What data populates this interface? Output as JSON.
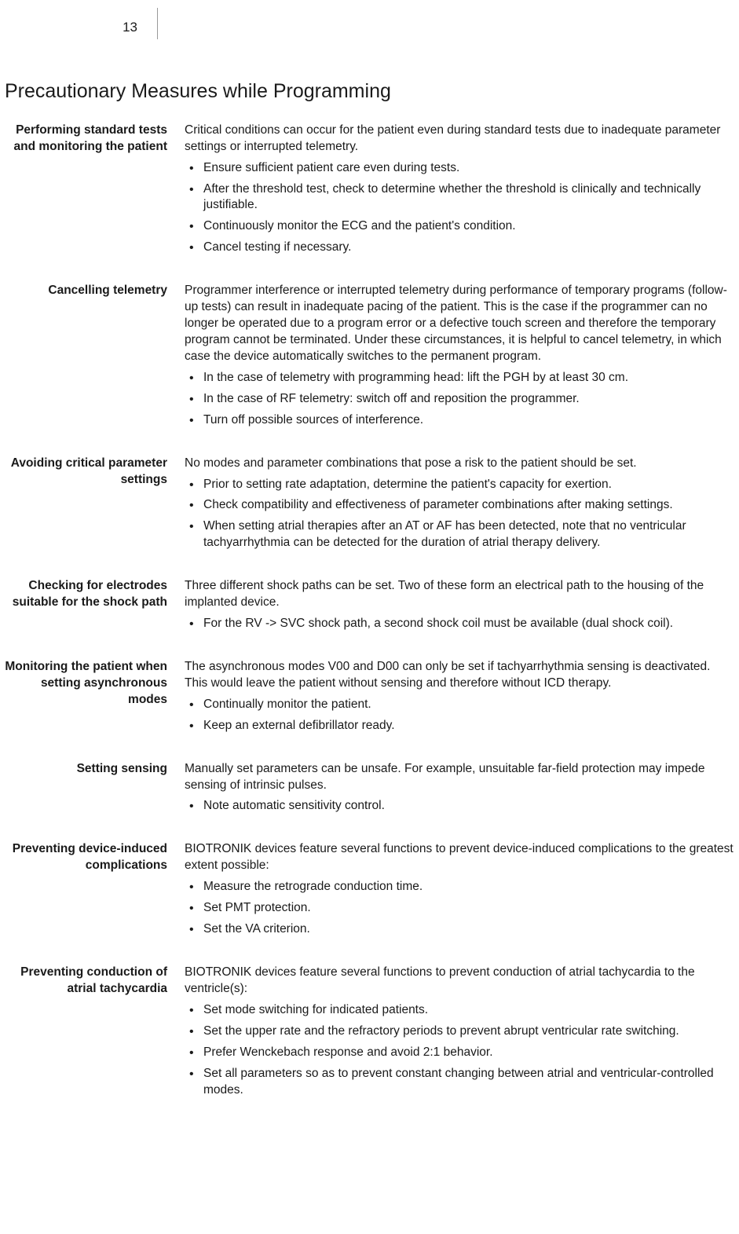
{
  "page_number": "13",
  "section_title": "Precautionary Measures while Programming",
  "items": [
    {
      "label": "Performing standard tests and monitoring the patient",
      "intro": "Critical conditions can occur for the patient even during standard tests due to inadequate parameter settings or interrupted telemetry.",
      "bullets": [
        "Ensure sufficient patient care even during tests.",
        "After the threshold test, check to determine whether the threshold is clinically and technically justifiable.",
        "Continuously monitor the ECG and the patient's condition.",
        "Cancel testing if necessary."
      ]
    },
    {
      "label": "Cancelling telemetry",
      "intro": "Programmer interference or interrupted telemetry during performance of temporary programs (follow-up tests) can result in inadequate pacing of the patient. This is the case if the programmer can no longer be operated due to a program error or a defective touch screen and therefore the temporary program cannot be terminated. Under these circumstances, it is helpful to cancel telemetry, in which case the device automatically switches to the permanent program.",
      "bullets": [
        "In the case of telemetry with programming head: lift the PGH by at least 30 cm.",
        "In the case of RF telemetry: switch off and reposition the programmer.",
        "Turn off possible sources of interference."
      ]
    },
    {
      "label": "Avoiding critical parameter settings",
      "intro": "No modes and parameter combinations that pose a risk to the patient should be set.",
      "bullets": [
        "Prior to setting rate adaptation, determine the patient's capacity for exertion.",
        "Check compatibility and effectiveness of parameter combinations after making settings.",
        "When setting atrial therapies after an AT or AF has been detected, note that no ventricular tachyarrhythmia can be detected for the duration of atrial therapy delivery."
      ]
    },
    {
      "label": "Checking for electrodes suitable for the shock path",
      "intro": "Three different shock paths can be set. Two of these form an electrical path to the housing of the implanted device.",
      "bullets": [
        "For the RV -> SVC shock path, a second shock coil must be available (dual shock coil)."
      ]
    },
    {
      "label": "Monitoring the patient when setting asynchronous modes",
      "intro": "The asynchronous modes V00 and D00 can only be set if tachyarrhythmia sensing is deactivated. This would leave the patient without sensing and therefore without ICD therapy.",
      "bullets": [
        "Continually monitor the patient.",
        "Keep an external defibrillator ready."
      ]
    },
    {
      "label": "Setting sensing",
      "intro": "Manually set parameters can be unsafe. For example, unsuitable far-field protection may impede sensing of intrinsic pulses.",
      "bullets": [
        "Note automatic sensitivity control."
      ]
    },
    {
      "label": "Preventing device-induced complications",
      "intro": "BIOTRONIK devices feature several functions to prevent device-induced complications to the greatest extent possible:",
      "bullets": [
        "Measure the retrograde conduction time.",
        "Set PMT protection.",
        "Set the VA criterion."
      ]
    },
    {
      "label": "Preventing conduction of atrial tachycardia",
      "intro": "BIOTRONIK devices feature several functions to prevent conduction of atrial tachycardia to the ventricle(s):",
      "bullets": [
        "Set mode switching for indicated patients.",
        "Set the upper rate and the refractory periods to prevent abrupt ventricular rate switching.",
        "Prefer Wenckebach response and avoid 2:1 behavior.",
        "Set all parameters so as to prevent constant changing between atrial and ventricular-controlled modes."
      ]
    }
  ]
}
